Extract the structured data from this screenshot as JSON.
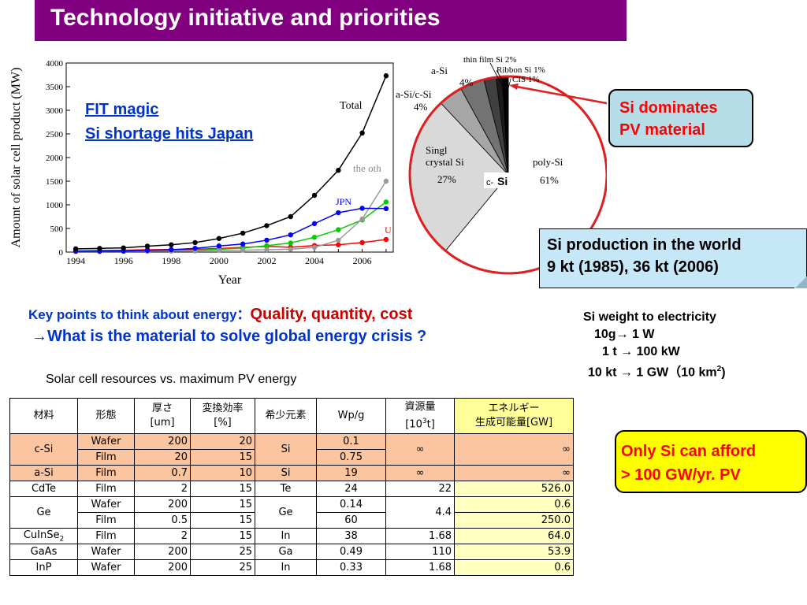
{
  "title": "Technology initiative and priorities",
  "callouts": {
    "fit_magic": "FIT magic",
    "si_shortage": "Si shortage hits Japan",
    "si_dominates_line1": "Si dominates",
    "si_dominates_line2": "PV material",
    "si_production_line1": "Si production in the world",
    "si_production_line2": "9 kt (1985), 36 kt (2006)",
    "only_si_line1": "Only Si can afford",
    "only_si_line2": "> 100 GW/yr. PV"
  },
  "key_points": {
    "lead": "Key points to think about energy：",
    "quality": "Quality, quantity, cost",
    "question": "→What is the material to solve global energy crisis ?"
  },
  "si_weight": {
    "title": "Si weight to electricity",
    "line1": "10g→ 1 W",
    "line2": "1 t → 100 kW",
    "line3_pre": "10 kt → 1 GW（10 km",
    "line3_sup": "2",
    "line3_post": ")"
  },
  "table_caption": "Solar cell resources vs. maximum PV energy",
  "table": {
    "headers": {
      "material": "材料",
      "form": "形態",
      "thickness_1": "厚さ",
      "thickness_2": "[um]",
      "efficiency_1": "変換効率",
      "efficiency_2": "[%]",
      "rare_element": "希少元素",
      "wpg": "Wp/g",
      "resource_1": "資源量",
      "resource_2_pre": "[10",
      "resource_2_sup": "3",
      "resource_2_post": "t]",
      "energy_1": "エネルギー",
      "energy_2": "生成可能量[GW]"
    },
    "rows": {
      "csi": {
        "material": "c-Si",
        "element": "Si",
        "resource": "∞",
        "energy": "∞",
        "wafer": {
          "form": "Wafer",
          "thickness": "200",
          "efficiency": "20",
          "wpg": "0.1"
        },
        "film": {
          "form": "Film",
          "thickness": "20",
          "efficiency": "15",
          "wpg": "0.75"
        }
      },
      "asi": {
        "material": "a-Si",
        "form": "Film",
        "thickness": "0.7",
        "efficiency": "10",
        "element": "Si",
        "wpg": "19",
        "resource": "∞",
        "energy": "∞"
      },
      "cdte": {
        "material": "CdTe",
        "form": "Film",
        "thickness": "2",
        "efficiency": "15",
        "element": "Te",
        "wpg": "24",
        "resource": "22",
        "energy": "526.0"
      },
      "ge": {
        "material": "Ge",
        "element": "Ge",
        "resource": "4.4",
        "wafer": {
          "form": "Wafer",
          "thickness": "200",
          "efficiency": "15",
          "wpg": "0.14",
          "energy": "0.6"
        },
        "film": {
          "form": "Film",
          "thickness": "0.5",
          "efficiency": "15",
          "wpg": "60",
          "energy": "250.0"
        }
      },
      "cuinse": {
        "material_pre": "CuInSe",
        "material_sub": "2",
        "form": "Film",
        "thickness": "2",
        "efficiency": "15",
        "element": "In",
        "wpg": "38",
        "resource": "1.68",
        "energy": "64.0"
      },
      "gaas": {
        "material": "GaAs",
        "form": "Wafer",
        "thickness": "200",
        "efficiency": "25",
        "element": "Ga",
        "wpg": "0.49",
        "resource": "110",
        "energy": "53.9"
      },
      "inp": {
        "material": "InP",
        "form": "Wafer",
        "thickness": "200",
        "efficiency": "25",
        "element": "In",
        "wpg": "0.33",
        "resource": "1.68",
        "energy": "0.6"
      }
    }
  },
  "chart_data": [
    {
      "type": "line",
      "ylabel": "Amount of solar cell  product (MW)",
      "xlabel": "Year",
      "x": [
        1994,
        1995,
        1996,
        1997,
        1998,
        1999,
        2000,
        2001,
        2002,
        2003,
        2004,
        2005,
        2006,
        2007
      ],
      "xticks": [
        1994,
        1996,
        1998,
        2000,
        2002,
        2004,
        2006
      ],
      "yticks": [
        0,
        500,
        1000,
        1500,
        2000,
        2500,
        3000,
        3500,
        4000
      ],
      "ylim": [
        0,
        4000
      ],
      "xlim": [
        1993.6,
        2007.3
      ],
      "series": [
        {
          "name": "Total",
          "color": "#000000",
          "values": [
            69,
            78,
            89,
            126,
            155,
            201,
            288,
            401,
            560,
            750,
            1200,
            1730,
            2520,
            3730
          ]
        },
        {
          "name": "JPN",
          "color": "#0000ff",
          "values": [
            17,
            16,
            21,
            35,
            49,
            80,
            129,
            171,
            251,
            364,
            602,
            833,
            927,
            920
          ]
        },
        {
          "name": "the oth",
          "color": "#999999",
          "values": [
            14,
            14,
            16,
            18,
            20,
            24,
            35,
            40,
            50,
            60,
            100,
            250,
            700,
            1500
          ]
        },
        {
          "name": "",
          "color": "#00cc00",
          "values": [
            22,
            20,
            19,
            20,
            33,
            40,
            60,
            86,
            135,
            193,
            314,
            474,
            680,
            1060
          ]
        },
        {
          "name": "US",
          "color": "#ff0000",
          "values": [
            26,
            35,
            39,
            51,
            54,
            61,
            75,
            100,
            121,
            103,
            139,
            154,
            202,
            266
          ]
        }
      ],
      "labels": {
        "total": "Total",
        "oth": "the oth",
        "jpn": "JPN",
        "us": "U"
      },
      "grid": false
    },
    {
      "type": "pie",
      "slices": [
        {
          "label": "poly-Si",
          "value": 61,
          "color": "#ffffff"
        },
        {
          "label": "Singl crystal Si",
          "value": 27,
          "color": "#d9d9d9"
        },
        {
          "label": "a-Si/c-Si",
          "value": 4,
          "color": "#a6a6a6"
        },
        {
          "label": "a-Si",
          "value": 4,
          "color": "#737373"
        },
        {
          "label": "thin film Si",
          "value": 2,
          "color": "#404040"
        },
        {
          "label": "Ribbon Si",
          "value": 1,
          "color": "#1a1a1a"
        },
        {
          "label": "CIS",
          "value": 1,
          "color": "#000000"
        }
      ],
      "texts": {
        "poly": "poly-Si",
        "poly_pct": "61%",
        "single1": "Singl",
        "single2": "crystal Si",
        "single_pct": "27%",
        "asicsi": "a-Si/c-Si",
        "asicsi_pct": "4%",
        "asi": "a-Si",
        "asi_pct": "4%",
        "thinfilm": "thin film Si  2%",
        "ribbon": "Ribbon Si  1%",
        "cis": "CIS  1%",
        "csi_small": "c-",
        "csi_big": "Si"
      }
    }
  ]
}
